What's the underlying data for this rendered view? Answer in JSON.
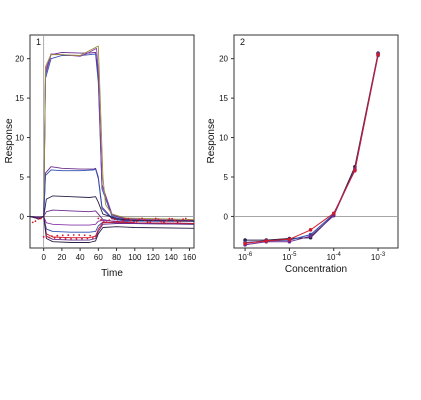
{
  "colors": {
    "axis": "#333333",
    "zero_line": "#9a9a9a",
    "purple": "#6a2d8c",
    "blue": "#2f4fb0",
    "red": "#d0192b",
    "olive": "#9a8f3a",
    "dark": "#2a1f46"
  },
  "chart_data": [
    {
      "type": "line",
      "panel_label": "1",
      "xlabel": "Time",
      "ylabel": "Response",
      "xlim": [
        -15,
        165
      ],
      "ylim": [
        -4,
        23
      ],
      "x_ticks": [
        0,
        20,
        40,
        60,
        80,
        100,
        120,
        140,
        160
      ],
      "y_ticks": [
        0,
        5,
        10,
        15,
        20
      ],
      "y_tick_labels": [
        "0",
        "5",
        "10",
        "15",
        "20"
      ],
      "zero_line": true,
      "series": [
        {
          "color": "#6a2d8c",
          "x": [
            -15,
            -5,
            0,
            2,
            8,
            20,
            40,
            50,
            57,
            60,
            64,
            75,
            90,
            120,
            165
          ],
          "y": [
            0,
            -0.2,
            0,
            18,
            20.5,
            20.8,
            20.7,
            20.7,
            20.8,
            18.0,
            4,
            0.2,
            -0.4,
            -0.5,
            -0.6
          ]
        },
        {
          "color": "#2f4fb0",
          "x": [
            -15,
            -5,
            0,
            2,
            8,
            20,
            40,
            50,
            57,
            60,
            64,
            75,
            90,
            120,
            165
          ],
          "y": [
            0,
            -0.3,
            0,
            17.5,
            20.0,
            20.4,
            20.4,
            20.5,
            20.6,
            17.0,
            3.5,
            0.0,
            -0.5,
            -0.6,
            -0.6
          ]
        },
        {
          "color": "#8a3aa8",
          "x": [
            -15,
            -5,
            0,
            2,
            8,
            20,
            40,
            50,
            58,
            60,
            64,
            75,
            90,
            120,
            165
          ],
          "y": [
            0,
            -0.2,
            0,
            18.5,
            20.6,
            20.5,
            20.3,
            20.8,
            21.3,
            18.5,
            4,
            0.3,
            -0.3,
            -0.4,
            -0.5
          ]
        },
        {
          "color": "#9a8f3a",
          "x": [
            -15,
            -5,
            0,
            2,
            8,
            20,
            40,
            50,
            60,
            62,
            65,
            68,
            75,
            90,
            165
          ],
          "y": [
            0,
            -0.1,
            0,
            19,
            20.5,
            20.5,
            20.4,
            21.0,
            21.6,
            15,
            5,
            1.5,
            0.3,
            -0.2,
            -0.4
          ]
        },
        {
          "color": "#6a2d8c",
          "x": [
            -15,
            -5,
            0,
            2,
            8,
            20,
            40,
            55,
            57,
            60,
            64,
            75,
            90,
            165
          ],
          "y": [
            0,
            -0.2,
            0,
            5.5,
            6.3,
            6.1,
            6.0,
            6.0,
            6.1,
            5.0,
            1.2,
            -0.2,
            -0.5,
            -0.5
          ]
        },
        {
          "color": "#2f4fb0",
          "x": [
            -15,
            -5,
            0,
            2,
            8,
            20,
            40,
            55,
            57,
            60,
            64,
            75,
            90,
            165
          ],
          "y": [
            0,
            -0.2,
            0,
            5.2,
            5.9,
            5.8,
            5.8,
            5.9,
            6.0,
            4.8,
            1.0,
            -0.3,
            -0.6,
            -0.6
          ]
        },
        {
          "color": "#2a1f46",
          "x": [
            -15,
            -5,
            0,
            3,
            10,
            30,
            50,
            57,
            60,
            65,
            80,
            100,
            165
          ],
          "y": [
            0,
            -0.1,
            0,
            2.2,
            2.6,
            2.5,
            2.4,
            2.5,
            1.8,
            0.3,
            -0.3,
            -0.5,
            -0.6
          ]
        },
        {
          "color": "#6a2d8c",
          "x": [
            -15,
            -5,
            0,
            3,
            10,
            30,
            50,
            57,
            60,
            65,
            80,
            100,
            165
          ],
          "y": [
            0,
            -0.1,
            0,
            0.6,
            0.8,
            0.7,
            0.6,
            0.7,
            0.3,
            -0.4,
            -0.7,
            -0.8,
            -0.9
          ]
        },
        {
          "color": "#8a3aa8",
          "x": [
            -15,
            -5,
            0,
            3,
            10,
            30,
            50,
            57,
            60,
            65,
            80,
            100,
            165
          ],
          "y": [
            0,
            -0.3,
            0,
            -0.8,
            -1.0,
            -1.1,
            -1.1,
            -1.0,
            -0.6,
            -0.5,
            -0.6,
            -0.8,
            -0.9
          ]
        },
        {
          "color": "#2f4fb0",
          "x": [
            -15,
            -5,
            0,
            3,
            10,
            30,
            50,
            57,
            60,
            65,
            80,
            100,
            165
          ],
          "y": [
            0,
            -0.3,
            0,
            -1.6,
            -1.9,
            -2.0,
            -2.0,
            -1.9,
            -1.2,
            -0.7,
            -0.8,
            -0.9,
            -1.0
          ]
        },
        {
          "color": "#d0192b",
          "x": [
            -15,
            -5,
            0,
            3,
            10,
            30,
            50,
            57,
            60,
            65,
            80,
            100,
            165
          ],
          "y": [
            0,
            -0.3,
            0,
            -2.2,
            -2.6,
            -2.7,
            -2.7,
            -2.5,
            -1.6,
            -0.8,
            -0.7,
            -0.8,
            -0.9
          ]
        },
        {
          "color": "#6a2d8c",
          "x": [
            -15,
            -5,
            0,
            3,
            10,
            30,
            50,
            57,
            60,
            65,
            80,
            100,
            165
          ],
          "y": [
            0,
            -0.3,
            0,
            -2.5,
            -2.9,
            -3.0,
            -3.0,
            -2.8,
            -1.9,
            -1.0,
            -0.9,
            -0.9,
            -1.0
          ]
        },
        {
          "color": "#2a1f46",
          "x": [
            -15,
            -5,
            0,
            3,
            10,
            30,
            50,
            57,
            60,
            65,
            80,
            100,
            165
          ],
          "y": [
            0,
            -0.3,
            0,
            -2.8,
            -3.2,
            -3.3,
            -3.3,
            -3.1,
            -2.2,
            -1.4,
            -1.3,
            -1.4,
            -1.5
          ]
        }
      ]
    },
    {
      "type": "line",
      "panel_label": "2",
      "xlabel": "Concentration",
      "ylabel": "Response",
      "xscale": "log",
      "xlim": [
        -6.25,
        -2.55
      ],
      "ylim": [
        -4,
        23
      ],
      "x_ticks": [
        -6,
        -5,
        -4,
        -3
      ],
      "x_tick_labels": [
        {
          "base": "10",
          "exp": "-6"
        },
        {
          "base": "10",
          "exp": "-5"
        },
        {
          "base": "10",
          "exp": "-4"
        },
        {
          "base": "10",
          "exp": "-3"
        }
      ],
      "y_ticks": [
        0,
        5,
        10,
        15,
        20
      ],
      "y_tick_labels": [
        "0",
        "5",
        "10",
        "15",
        "20"
      ],
      "zero_line": true,
      "series": [
        {
          "color": "#2a1f46",
          "x": [
            1e-06,
            3e-06,
            1e-05,
            3e-05,
            0.0001,
            0.0003,
            0.001
          ],
          "y": [
            -3.0,
            -3.0,
            -2.8,
            -2.7,
            0.2,
            6.3,
            20.7
          ]
        },
        {
          "color": "#2f4fb0",
          "x": [
            1e-06,
            3e-06,
            1e-05,
            3e-05,
            0.0001,
            0.0003,
            0.001
          ],
          "y": [
            -3.3,
            -3.1,
            -3.0,
            -2.3,
            0.3,
            5.9,
            20.4
          ]
        },
        {
          "color": "#6a2d8c",
          "x": [
            1e-06,
            3e-06,
            1e-05,
            3e-05,
            0.0001,
            0.0003,
            0.001
          ],
          "y": [
            -3.6,
            -3.2,
            -3.2,
            -2.5,
            0.1,
            6.0,
            20.6
          ]
        },
        {
          "color": "#d0192b",
          "x": [
            1e-06,
            3e-06,
            1e-05,
            3e-05,
            0.0001,
            0.0003,
            0.001
          ],
          "y": [
            -3.4,
            -3.1,
            -2.9,
            -1.7,
            0.4,
            5.8,
            20.5
          ]
        }
      ]
    }
  ]
}
